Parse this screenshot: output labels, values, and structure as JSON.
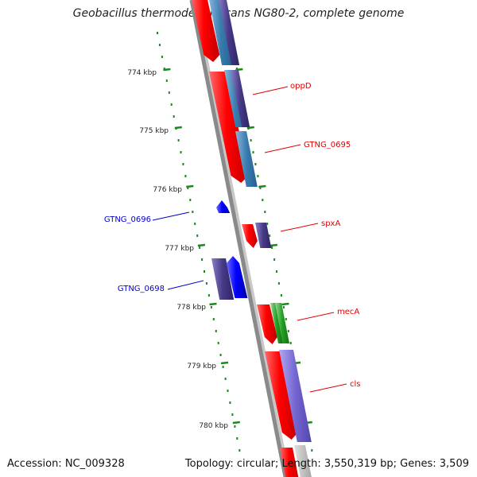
{
  "title": "Geobacillus thermodenitrificans NG80-2, complete genome",
  "footer": {
    "accession": "Accession: NC_009328",
    "summary": "Topology: circular; Length: 3,550,319 bp; Genes: 3,509"
  },
  "scale_labels": [
    "774 kbp",
    "775 kbp",
    "776 kbp",
    "777 kbp",
    "778 kbp",
    "779 kbp",
    "780 kbp"
  ],
  "gene_labels": [
    {
      "name": "oppD",
      "strand": "forward"
    },
    {
      "name": "GTNG_0695",
      "strand": "forward"
    },
    {
      "name": "GTNG_0696",
      "strand": "reverse"
    },
    {
      "name": "spxA",
      "strand": "forward"
    },
    {
      "name": "GTNG_0698",
      "strand": "reverse"
    },
    {
      "name": "mecA",
      "strand": "forward"
    },
    {
      "name": "cls",
      "strand": "forward"
    }
  ],
  "colors": {
    "forward_label": "#e00000",
    "reverse_label": "#0000cc",
    "tick": "#1a8a1a",
    "backbone": "#8a8a8a",
    "gene_red": "#ff0000",
    "gene_blue": "#0000ff",
    "gene_purple": "#4b3f8a",
    "gene_lightpurple": "#7b6fd0",
    "gene_steel": "#3f7fb0",
    "gene_green": "#2a9a2a"
  }
}
